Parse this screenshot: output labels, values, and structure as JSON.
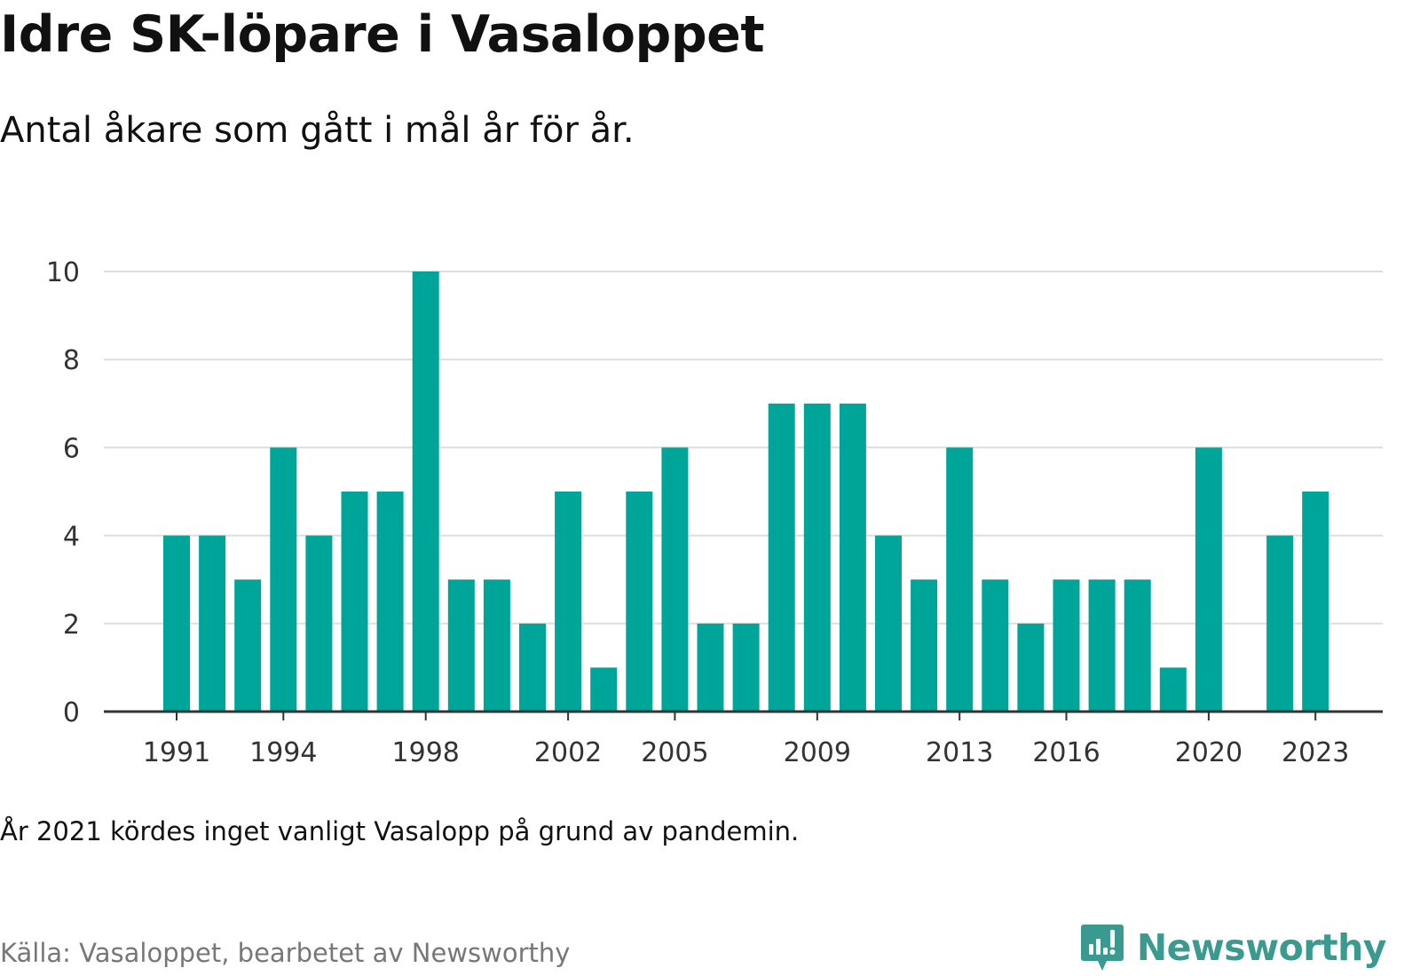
{
  "title": "Idre SK-löpare i Vasaloppet",
  "subtitle": "Antal åkare som gått i mål år för år.",
  "note": "År 2021 kördes inget vanligt Vasalopp på grund av pandemin.",
  "source": "Källa: Vasaloppet, bearbetet av Newsworthy",
  "logo_text": "Newsworthy",
  "colors": {
    "bar": "#00a599",
    "grid": "#dddddd",
    "axis": "#333333",
    "logo": "#3b9a8f"
  },
  "chart_data": {
    "type": "bar",
    "categories": [
      "1991",
      "1992",
      "1993",
      "1994",
      "1995",
      "1996",
      "1997",
      "1998",
      "1999",
      "2000",
      "2001",
      "2002",
      "2003",
      "2004",
      "2005",
      "2006",
      "2007",
      "2008",
      "2009",
      "2010",
      "2011",
      "2012",
      "2013",
      "2014",
      "2015",
      "2016",
      "2017",
      "2018",
      "2019",
      "2020",
      "2021",
      "2022",
      "2023"
    ],
    "values": [
      4,
      4,
      3,
      6,
      4,
      5,
      5,
      10,
      3,
      3,
      2,
      5,
      1,
      5,
      6,
      2,
      2,
      7,
      7,
      7,
      4,
      3,
      6,
      3,
      2,
      3,
      3,
      3,
      1,
      6,
      null,
      4,
      5
    ],
    "x_tick_labels": [
      "1991",
      "1994",
      "1998",
      "2002",
      "2005",
      "2009",
      "2013",
      "2016",
      "2020",
      "2023"
    ],
    "y_ticks": [
      "0",
      "2",
      "4",
      "6",
      "8",
      "10"
    ],
    "ylim": [
      0,
      10
    ],
    "grid": true,
    "legend": "none"
  }
}
